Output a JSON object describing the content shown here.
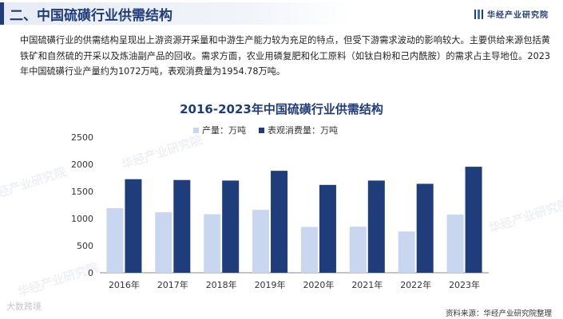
{
  "header": {
    "title": "二、中国硫磺行业供需结构",
    "brand": "华经产业研究院"
  },
  "intro": "中国硫磺行业的供需结构呈现出上游资源开采量和中游生产能力较为充足的特点，但受下游需求波动的影响较大。主要供给来源包括黄铁矿和自然硫的开采以及炼油副产品的回收。需求方面，农业用磷复肥和化工原料（如钛白粉和己内酰胺）的需求占主导地位。2023年中国硫磺行业产量约为1072万吨，表观消费量为1954.78万吨。",
  "source": "资料来源：华经产业研究院整理",
  "watermarks": [
    "华经产业研究院",
    "华经产业研究院",
    "华经产业研究院",
    "华经产业研究院"
  ],
  "logo_watermark": "大数跨境",
  "colors": {
    "header": "#1f3d7a",
    "production": "#c8d6ef",
    "consumption": "#1f3d7a"
  },
  "chart_data": {
    "type": "bar",
    "title": "2016-2023年中国硫磺行业供需结构",
    "categories": [
      "2016年",
      "2017年",
      "2018年",
      "2019年",
      "2020年",
      "2021年",
      "2022年",
      "2023年"
    ],
    "series": [
      {
        "name": "产量：万吨",
        "values": [
          1190,
          1115,
          1080,
          1160,
          845,
          850,
          760,
          1072
        ]
      },
      {
        "name": "表观消费量：万吨",
        "values": [
          1725,
          1710,
          1700,
          1880,
          1620,
          1700,
          1640,
          1954.78
        ]
      }
    ],
    "ylim": [
      0,
      2500
    ],
    "yticks": [
      0,
      500,
      1000,
      1500,
      2000,
      2500
    ],
    "legend_position": "top",
    "grid": false
  }
}
